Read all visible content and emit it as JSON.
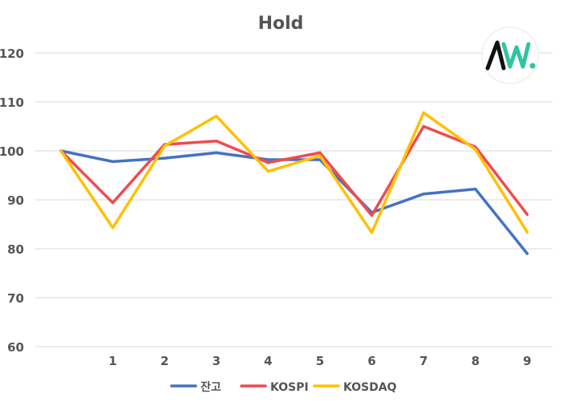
{
  "chart_data": {
    "type": "line",
    "title": "Hold",
    "xlabel": "",
    "ylabel": "",
    "x": [
      "",
      "1",
      "2",
      "3",
      "4",
      "5",
      "6",
      "7",
      "8",
      "9"
    ],
    "ylim": [
      60,
      120
    ],
    "yticks": [
      60,
      70,
      80,
      90,
      100,
      110,
      120
    ],
    "grid": true,
    "legend_position": "bottom",
    "series": [
      {
        "name": "잔고",
        "color": "#4472c4",
        "values": [
          100,
          97.8,
          98.5,
          99.6,
          98.2,
          98.2,
          87.4,
          91.2,
          92.2,
          79.0
        ]
      },
      {
        "name": "KOSPI",
        "color": "#ee4b50",
        "values": [
          100,
          89.4,
          101.3,
          102.0,
          97.6,
          99.6,
          86.8,
          105.0,
          100.8,
          87.0
        ]
      },
      {
        "name": "KOSDAQ",
        "color": "#ffc000",
        "values": [
          100,
          84.3,
          101.0,
          107.1,
          95.8,
          99.0,
          83.3,
          107.8,
          100.3,
          83.4
        ]
      }
    ]
  },
  "logo": {
    "name": "aw-logo-icon",
    "text": "AW.",
    "colors": [
      "#111111",
      "#2ec5a0"
    ]
  }
}
